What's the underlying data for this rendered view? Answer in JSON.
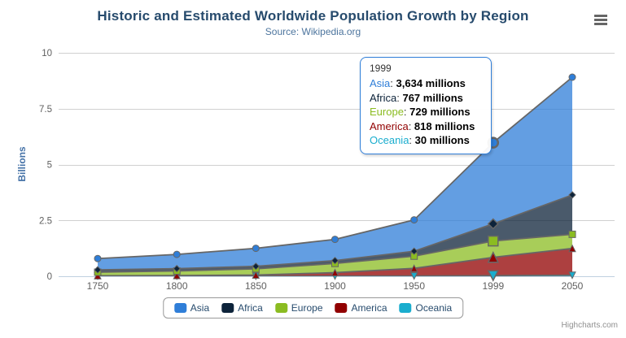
{
  "chart": {
    "credits_label": "Highcharts.com",
    "context_button": "chart-context-menu"
  },
  "chart_data": {
    "type": "area",
    "stacking": "normal",
    "title": "Historic and Estimated Worldwide Population Growth by Region",
    "subtitle": "Source: Wikipedia.org",
    "categories": [
      "1750",
      "1800",
      "1850",
      "1900",
      "1950",
      "1999",
      "2050"
    ],
    "xlabel": "",
    "ylabel": "Billions",
    "unit": "millions",
    "ylim": [
      0,
      10
    ],
    "yticks": [
      0,
      2.5,
      5,
      7.5,
      10
    ],
    "ytick_labels": [
      "0",
      "2.5",
      "5",
      "7.5",
      "10"
    ],
    "grid": true,
    "legend_position": "bottom-center",
    "stack_order_bottom_to_top": [
      "Oceania",
      "America",
      "Europe",
      "Africa",
      "Asia"
    ],
    "series": [
      {
        "name": "Asia",
        "color": "#2f7ed8",
        "marker": "circle",
        "values_millions": [
          502,
          635,
          809,
          947,
          1402,
          3634,
          5268
        ]
      },
      {
        "name": "Africa",
        "color": "#0d233a",
        "marker": "diamond",
        "values_millions": [
          106,
          107,
          111,
          133,
          221,
          767,
          1766
        ]
      },
      {
        "name": "Europe",
        "color": "#8bbc21",
        "marker": "square",
        "values_millions": [
          163,
          203,
          276,
          408,
          547,
          729,
          628
        ]
      },
      {
        "name": "America",
        "color": "#910000",
        "marker": "triangle",
        "values_millions": [
          18,
          31,
          54,
          156,
          339,
          818,
          1201
        ]
      },
      {
        "name": "Oceania",
        "color": "#1aadce",
        "marker": "triangle-down",
        "values_millions": [
          2,
          2,
          2,
          6,
          13,
          30,
          46
        ]
      }
    ]
  },
  "tooltip": {
    "header": "1999",
    "hover_category_index": 5,
    "border_color": "#2f7ed8",
    "rows": [
      {
        "series": "Asia",
        "color": "#2f7ed8",
        "value_text": "3,634 millions"
      },
      {
        "series": "Africa",
        "color": "#0d233a",
        "value_text": "767 millions"
      },
      {
        "series": "Europe",
        "color": "#8bbc21",
        "value_text": "729 millions"
      },
      {
        "series": "America",
        "color": "#910000",
        "value_text": "818 millions"
      },
      {
        "series": "Oceania",
        "color": "#1aadce",
        "value_text": "30 millions"
      }
    ]
  },
  "colors": {
    "title": "#274b6d",
    "subtitle": "#4d759e",
    "axis_label": "#606060",
    "y_axis_title": "#4572a7",
    "grid_line": "#d0d0d0",
    "axis_line": "#c0d0e0",
    "series_outline": "#666666",
    "legend_border": "#999999",
    "legend_text": "#274b6d",
    "credits": "#909090"
  }
}
